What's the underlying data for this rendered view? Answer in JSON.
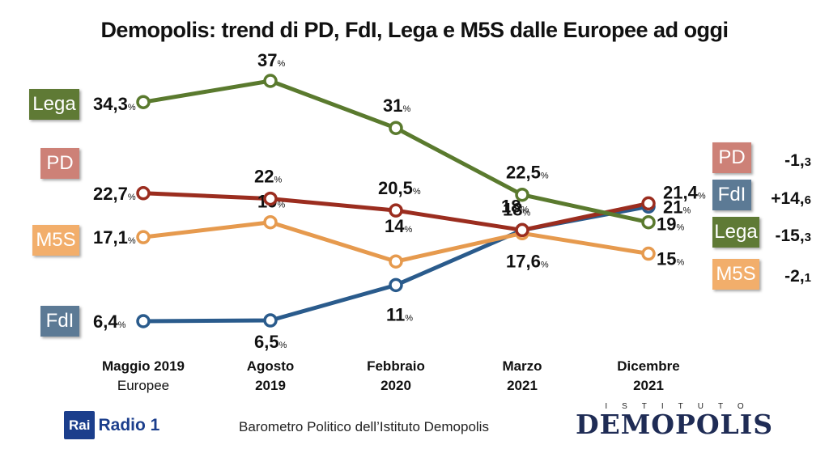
{
  "title": "Demopolis: trend di PD, FdI, Lega e M5S dalle Europee ad oggi",
  "chart_data": {
    "type": "line",
    "title": "Demopolis: trend di PD, FdI, Lega e M5S dalle Europee ad oggi",
    "categories": [
      {
        "main": "Maggio 2019",
        "sub": "Europee"
      },
      {
        "main": "Agosto",
        "sub": "2019"
      },
      {
        "main": "Febbraio",
        "sub": "2020"
      },
      {
        "main": "Marzo",
        "sub": "2021"
      },
      {
        "main": "Dicembre",
        "sub": "2021"
      }
    ],
    "unit": "%",
    "ylim": [
      0,
      40
    ],
    "grid": false,
    "series": [
      {
        "name": "Lega",
        "color": "#5a7a2e",
        "label_color": "#5f7a35",
        "values": [
          34.3,
          37,
          31,
          22.5,
          19
        ],
        "delta": "-15,3"
      },
      {
        "name": "PD",
        "color": "#9b2d1f",
        "label_color": "#cd8177",
        "values": [
          22.7,
          22,
          20.5,
          18,
          21.4
        ],
        "delta": "-1,3"
      },
      {
        "name": "M5S",
        "color": "#e69a4e",
        "label_color": "#f2ae6b",
        "values": [
          17.1,
          19,
          14,
          17.6,
          15
        ],
        "delta": "-2,1"
      },
      {
        "name": "FdI",
        "color": "#2a5b8c",
        "label_color": "#5c7a95",
        "values": [
          6.4,
          6.5,
          11,
          18,
          21
        ],
        "delta": "+14,6"
      }
    ]
  },
  "footer": {
    "source": "Barometro Politico dell’Istituto Demopolis",
    "rai_logo": "Rai",
    "rai_radio": "Radio 1",
    "demopolis_top": "ISTITUTO",
    "demopolis_main": "DEMOPOLIS"
  }
}
